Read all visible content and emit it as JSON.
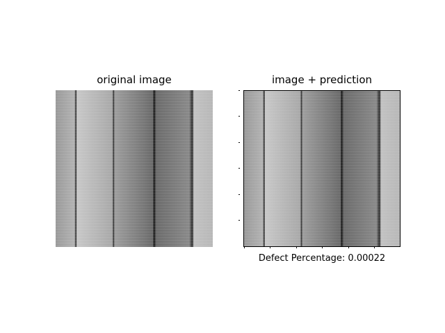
{
  "left_panel": {
    "title": "original image"
  },
  "right_panel": {
    "title": "image + prediction"
  },
  "caption": "Defect Percentage: 0.00022"
}
